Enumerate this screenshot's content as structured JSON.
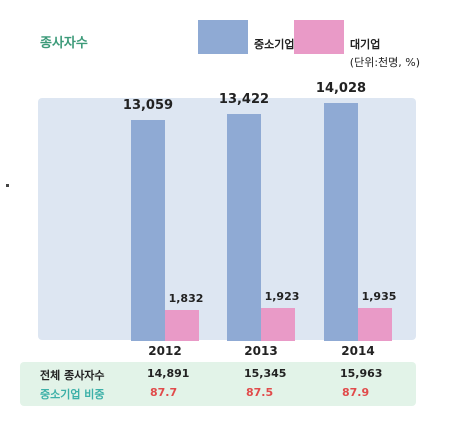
{
  "chart_data": {
    "type": "bar",
    "title": "종사자수",
    "unit": "(단위:천명, %)",
    "categories": [
      "2012",
      "2013",
      "2014"
    ],
    "series": [
      {
        "name": "중소기업",
        "color": "#8faad4",
        "values": [
          13059,
          13422,
          14028
        ],
        "labels": [
          "13,059",
          "13,422",
          "14,028"
        ]
      },
      {
        "name": "대기업",
        "color": "#e99ac7",
        "values": [
          1832,
          1923,
          1935
        ],
        "labels": [
          "1,832",
          "1,923",
          "1,935"
        ]
      }
    ],
    "table": {
      "rows": [
        {
          "label": "전체 종사자수",
          "values": [
            "14,891",
            "15,345",
            "15,963"
          ]
        },
        {
          "label": "중소기업 비중",
          "values": [
            "87.7",
            "87.5",
            "87.9"
          ]
        }
      ]
    }
  }
}
